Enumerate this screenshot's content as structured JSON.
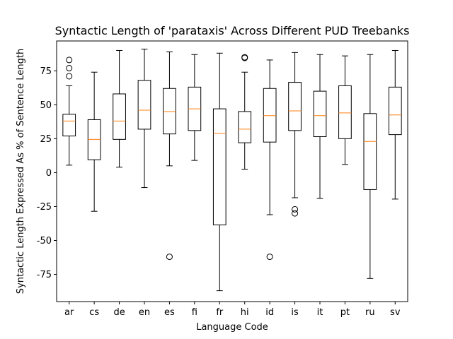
{
  "chart_data": {
    "type": "boxplot",
    "title": "Syntactic Length of 'parataxis' Across Different PUD Treebanks",
    "xlabel": "Language Code",
    "ylabel": "Syntactic Length Expressed As % of Sentence Length",
    "ylim": [
      -95,
      97
    ],
    "yticks": [
      -75,
      -50,
      -25,
      0,
      25,
      50,
      75
    ],
    "grid": false,
    "colors": {
      "box": "#000000",
      "median": "#ff7f0e",
      "flier": "#000000"
    },
    "categories": [
      "ar",
      "cs",
      "de",
      "en",
      "es",
      "fi",
      "fr",
      "hi",
      "id",
      "is",
      "it",
      "pt",
      "ru",
      "sv"
    ],
    "boxes": [
      {
        "label": "ar",
        "whisker_low": 5.5,
        "q1": 27,
        "median": 38,
        "q3": 43,
        "whisker_high": 64,
        "fliers": [
          71,
          77,
          83
        ]
      },
      {
        "label": "cs",
        "whisker_low": -28.5,
        "q1": 9.5,
        "median": 24.5,
        "q3": 39,
        "whisker_high": 74,
        "fliers": []
      },
      {
        "label": "de",
        "whisker_low": 4,
        "q1": 24.5,
        "median": 38,
        "q3": 58,
        "whisker_high": 90,
        "fliers": []
      },
      {
        "label": "en",
        "whisker_low": -11,
        "q1": 32,
        "median": 46,
        "q3": 68,
        "whisker_high": 91,
        "fliers": []
      },
      {
        "label": "es",
        "whisker_low": 5,
        "q1": 28.5,
        "median": 45,
        "q3": 62,
        "whisker_high": 89,
        "fliers": [
          -62
        ]
      },
      {
        "label": "fi",
        "whisker_low": 9,
        "q1": 31,
        "median": 47,
        "q3": 63,
        "whisker_high": 87,
        "fliers": []
      },
      {
        "label": "fr",
        "whisker_low": -87,
        "q1": -38.5,
        "median": 29,
        "q3": 47,
        "whisker_high": 88,
        "fliers": []
      },
      {
        "label": "hi",
        "whisker_low": 2.5,
        "q1": 22,
        "median": 32,
        "q3": 45,
        "whisker_high": 74,
        "fliers": [
          85,
          84.5
        ]
      },
      {
        "label": "id",
        "whisker_low": -31,
        "q1": 22.5,
        "median": 42,
        "q3": 62,
        "whisker_high": 83,
        "fliers": [
          -62
        ]
      },
      {
        "label": "is",
        "whisker_low": -18.5,
        "q1": 31,
        "median": 45.5,
        "q3": 66.5,
        "whisker_high": 88.5,
        "fliers": [
          -27,
          -30
        ]
      },
      {
        "label": "it",
        "whisker_low": -19,
        "q1": 26.5,
        "median": 42,
        "q3": 60,
        "whisker_high": 87,
        "fliers": []
      },
      {
        "label": "pt",
        "whisker_low": 6,
        "q1": 25,
        "median": 44,
        "q3": 64,
        "whisker_high": 86,
        "fliers": []
      },
      {
        "label": "ru",
        "whisker_low": -78,
        "q1": -12.5,
        "median": 23,
        "q3": 43.5,
        "whisker_high": 87,
        "fliers": []
      },
      {
        "label": "sv",
        "whisker_low": -19.5,
        "q1": 28,
        "median": 42.5,
        "q3": 63,
        "whisker_high": 90,
        "fliers": []
      }
    ]
  }
}
